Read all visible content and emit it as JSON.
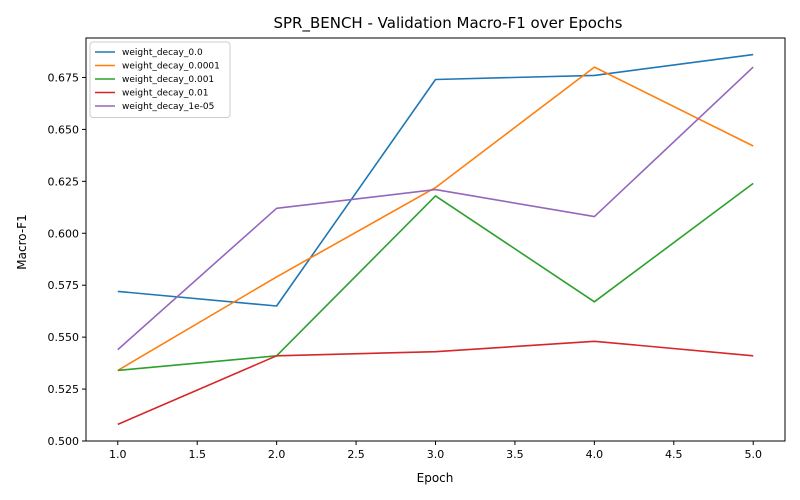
{
  "chart_data": {
    "type": "line",
    "title": "SPR_BENCH - Validation Macro-F1 over Epochs",
    "xlabel": "Epoch",
    "ylabel": "Macro-F1",
    "x": [
      1,
      2,
      3,
      4,
      5
    ],
    "xlim": [
      0.8,
      5.2
    ],
    "ylim": [
      0.5,
      0.694
    ],
    "xticks": [
      1.0,
      1.5,
      2.0,
      2.5,
      3.0,
      3.5,
      4.0,
      4.5,
      5.0
    ],
    "xtick_labels": [
      "1.0",
      "1.5",
      "2.0",
      "2.5",
      "3.0",
      "3.5",
      "4.0",
      "4.5",
      "5.0"
    ],
    "yticks": [
      0.5,
      0.525,
      0.55,
      0.575,
      0.6,
      0.625,
      0.65,
      0.675
    ],
    "ytick_labels": [
      "0.500",
      "0.525",
      "0.550",
      "0.575",
      "0.600",
      "0.625",
      "0.650",
      "0.675"
    ],
    "grid": false,
    "legend_position": "top-left",
    "series": [
      {
        "name": "weight_decay_0.0",
        "color": "#1f77b4",
        "values": [
          0.572,
          0.565,
          0.674,
          0.676,
          0.686
        ]
      },
      {
        "name": "weight_decay_0.0001",
        "color": "#ff7f0e",
        "values": [
          0.534,
          0.579,
          0.622,
          0.68,
          0.642
        ]
      },
      {
        "name": "weight_decay_0.001",
        "color": "#2ca02c",
        "values": [
          0.534,
          0.541,
          0.618,
          0.567,
          0.624
        ]
      },
      {
        "name": "weight_decay_0.01",
        "color": "#d62728",
        "values": [
          0.508,
          0.541,
          0.543,
          0.548,
          0.541
        ]
      },
      {
        "name": "weight_decay_1e-05",
        "color": "#9467bd",
        "values": [
          0.544,
          0.612,
          0.621,
          0.608,
          0.68
        ]
      }
    ]
  }
}
